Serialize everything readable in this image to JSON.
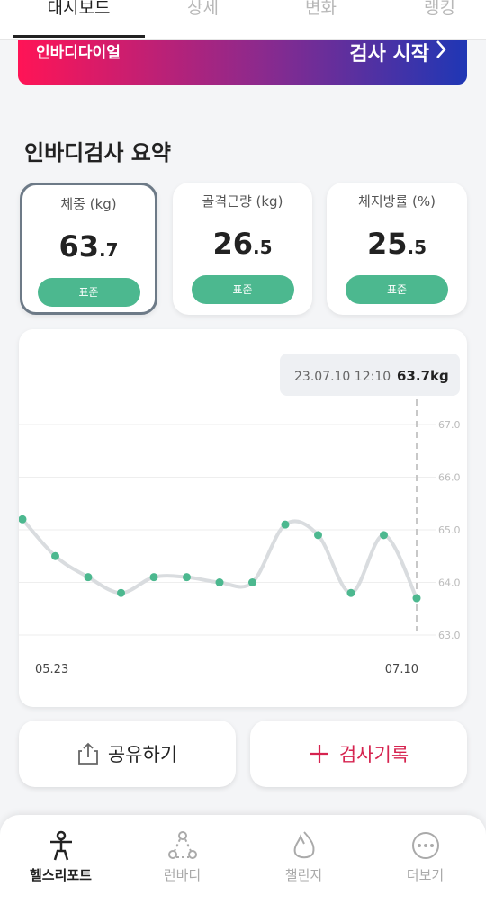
{
  "tabs": [
    "대시보드",
    "상세",
    "변화",
    "랭킹"
  ],
  "banner": {
    "left": "인바디다이얼",
    "right": "검사 시작"
  },
  "section_title": "인바디검사 요약",
  "cards": [
    {
      "label": "체중 (kg)",
      "value": 63.7,
      "badge": "표준"
    },
    {
      "label": "골격근량 (kg)",
      "value": 26.5,
      "badge": "표준"
    },
    {
      "label": "체지방률 (%)",
      "value": 25.5,
      "badge": "표준"
    }
  ],
  "chart_data": {
    "type": "line",
    "categories": [
      "05.23",
      null,
      null,
      null,
      null,
      null,
      null,
      null,
      null,
      null,
      null,
      null,
      "07.10"
    ],
    "series": [
      {
        "name": "체중",
        "color": "#d9dcdf",
        "values": [
          65.2,
          64.5,
          64.1,
          63.8,
          64.1,
          64.1,
          64.0,
          64.0,
          65.1,
          64.9,
          63.8,
          64.9,
          63.7
        ]
      }
    ],
    "point_color": "#4cb88f",
    "ylim": [
      63,
      67
    ],
    "yticks": [
      {
        "value": 63,
        "label": "63.0"
      },
      {
        "value": 64,
        "label": "64.0"
      },
      {
        "value": 65,
        "label": "65.0"
      },
      {
        "value": 66,
        "label": "66.0"
      },
      {
        "value": 67,
        "label": "67.0"
      }
    ],
    "grid": true,
    "tooltip": {
      "time": "23.07.10 12:10",
      "value_label": "63.7kg"
    }
  },
  "buttons": [
    "공유하기",
    "검사기록"
  ],
  "nav": [
    "헬스리포트",
    "런바디",
    "챌린지",
    "더보기"
  ]
}
